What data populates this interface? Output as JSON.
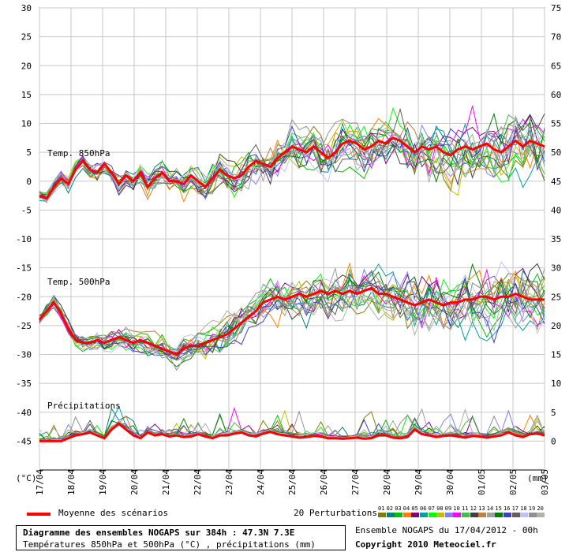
{
  "chart_data": {
    "type": "line",
    "title": "Diagramme des ensembles NOGAPS sur 384h : 47.3N 7.3E",
    "subtitle": "Températures 850hPa et 500hPa (°C) , précipitations (mm)",
    "run_label": "Ensemble NOGAPS du 17/04/2012 - 00h",
    "copyright": "Copyright 2010 Meteociel.fr",
    "left_axis": {
      "unit": "(°C)",
      "ticks": [
        30,
        25,
        20,
        15,
        10,
        5,
        0,
        -5,
        -10,
        -15,
        -20,
        -25,
        -30,
        -35,
        -40,
        -45
      ],
      "ylim": [
        -50,
        30
      ]
    },
    "right_axis": {
      "unit": "(mm)",
      "ticks": [
        75,
        70,
        65,
        60,
        55,
        50,
        45,
        40,
        35,
        30,
        25,
        20,
        15,
        10,
        5,
        0
      ]
    },
    "x_ticks": [
      "17/04",
      "18/04",
      "19/04",
      "20/04",
      "21/04",
      "22/04",
      "23/04",
      "24/04",
      "25/04",
      "26/04",
      "27/04",
      "28/04",
      "29/04",
      "30/04",
      "01/05",
      "02/05",
      "03/05"
    ],
    "grid": true,
    "legend_placement": "bottom",
    "sections": [
      {
        "label": "Temp. 850hPa"
      },
      {
        "label": "Temp. 500hPa"
      },
      {
        "label": "Précipitations"
      }
    ],
    "mean_legend": "Moyenne des scénarios",
    "perturbation_legend": "20 Perturbations",
    "perturbation_ids": [
      "01",
      "02",
      "03",
      "04",
      "05",
      "06",
      "07",
      "08",
      "09",
      "10",
      "11",
      "12",
      "13",
      "14",
      "15",
      "16",
      "17",
      "18",
      "19",
      "20"
    ],
    "perturbation_colors": [
      "#808000",
      "#008080",
      "#00c000",
      "#ff8000",
      "#800080",
      "#00a0a0",
      "#00ff00",
      "#c0c000",
      "#8080ff",
      "#ff00ff",
      "#40c040",
      "#404040",
      "#c08040",
      "#a0a0a0",
      "#008000",
      "#4040c0",
      "#606060",
      "#c0c0ff",
      "#909090",
      "#b0b0b0"
    ],
    "mean_color": "#ff0000",
    "series": [
      {
        "name": "Moyenne des scénarios",
        "group": "t850",
        "values": [
          -2.5,
          -3,
          -1,
          0.5,
          -0.5,
          2,
          3.5,
          2,
          1.5,
          3,
          1.5,
          -0.5,
          1,
          0,
          1.5,
          -1,
          0.5,
          1.5,
          0,
          0,
          -0.5,
          1,
          0,
          -1,
          0.5,
          2,
          1,
          0.5,
          1,
          2.5,
          3.5,
          3,
          2.5,
          4,
          5,
          6,
          5.5,
          5,
          6,
          5,
          4,
          5,
          6.5,
          7,
          6.5,
          5.5,
          6,
          7,
          6.5,
          7.5,
          7,
          6,
          5,
          6,
          5.5,
          6,
          5,
          4.5,
          5.5,
          6,
          5.5,
          6,
          6.5,
          5.5,
          5,
          6,
          7,
          6,
          7,
          6.5,
          6
        ]
      },
      {
        "name": "Moyenne des scénarios",
        "group": "t500",
        "values": [
          -24,
          -22.5,
          -21,
          -23,
          -25.5,
          -27.5,
          -28,
          -28,
          -27.5,
          -28,
          -27.5,
          -27,
          -27.5,
          -28,
          -27.5,
          -28,
          -28.5,
          -29,
          -29.5,
          -30,
          -29,
          -28.5,
          -28.5,
          -28,
          -27.5,
          -27,
          -26.5,
          -25.5,
          -24.5,
          -23.5,
          -22.5,
          -21,
          -20.5,
          -20,
          -20.5,
          -20,
          -19.5,
          -20,
          -19.5,
          -19,
          -19.5,
          -19,
          -19.5,
          -19,
          -19.5,
          -19,
          -18.5,
          -19.5,
          -19.5,
          -20,
          -20.5,
          -21,
          -21.5,
          -21,
          -20.5,
          -21,
          -21.5,
          -21,
          -21,
          -20.5,
          -20.5,
          -20,
          -20,
          -20.5,
          -20,
          -20,
          -19.5,
          -20,
          -20.5,
          -20.5,
          -20.5
        ]
      },
      {
        "name": "Moyenne des scénarios",
        "group": "precip",
        "values": [
          0,
          0,
          0,
          0,
          0.5,
          1,
          1.2,
          1.5,
          1,
          0.5,
          2,
          3,
          2,
          1,
          0.5,
          1.5,
          1,
          1.2,
          0.8,
          1,
          0.7,
          0.8,
          1.2,
          0.8,
          0.5,
          1,
          1,
          1.3,
          1.5,
          1,
          0.8,
          1.3,
          1.6,
          1.2,
          1,
          0.8,
          0.6,
          0.7,
          0.9,
          0.8,
          0.5,
          0.5,
          0.4,
          0.5,
          0.6,
          0.4,
          0.5,
          1,
          1,
          0.6,
          0.5,
          0.7,
          2,
          1.2,
          1,
          0.7,
          0.9,
          1,
          0.8,
          0.6,
          0.9,
          0.8,
          0.6,
          0.8,
          1,
          1.5,
          1,
          0.7,
          1.2,
          1.3,
          1
        ]
      }
    ]
  }
}
